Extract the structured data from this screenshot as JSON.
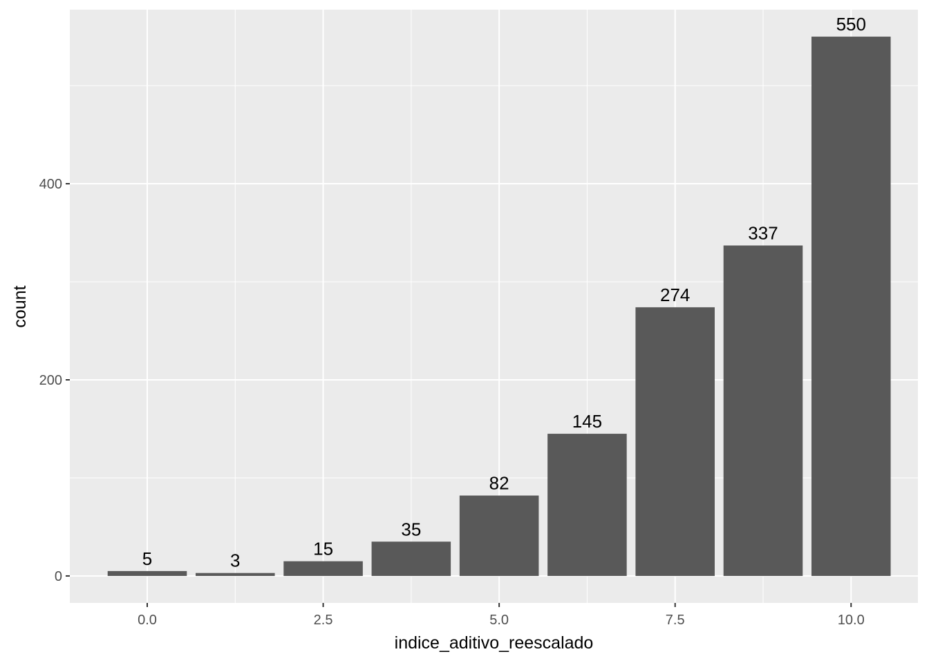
{
  "chart_data": {
    "type": "bar",
    "title": "",
    "xlabel": "indice_aditivo_reescalado",
    "ylabel": "count",
    "x": [
      0,
      1.25,
      2.5,
      3.75,
      5,
      6.25,
      7.5,
      8.75,
      10
    ],
    "values": [
      5,
      3,
      15,
      35,
      82,
      145,
      274,
      337,
      550
    ],
    "data_labels": [
      "5",
      "3",
      "15",
      "35",
      "82",
      "145",
      "274",
      "337",
      "550"
    ],
    "bar_width": 1.125,
    "xlim": [
      -1.1,
      10.95
    ],
    "ylim": [
      -27.5,
      577.5
    ],
    "x_ticks": [
      0,
      2.5,
      5,
      7.5,
      10
    ],
    "x_tick_labels": [
      "0.0",
      "2.5",
      "5.0",
      "7.5",
      "10.0"
    ],
    "y_ticks": [
      0,
      200,
      400
    ],
    "y_tick_labels": [
      "0",
      "200",
      "400"
    ],
    "grid": true,
    "colors": {
      "panel": "#ebebeb",
      "grid": "#ffffff",
      "bar": "#595959",
      "tick": "#333333"
    }
  }
}
